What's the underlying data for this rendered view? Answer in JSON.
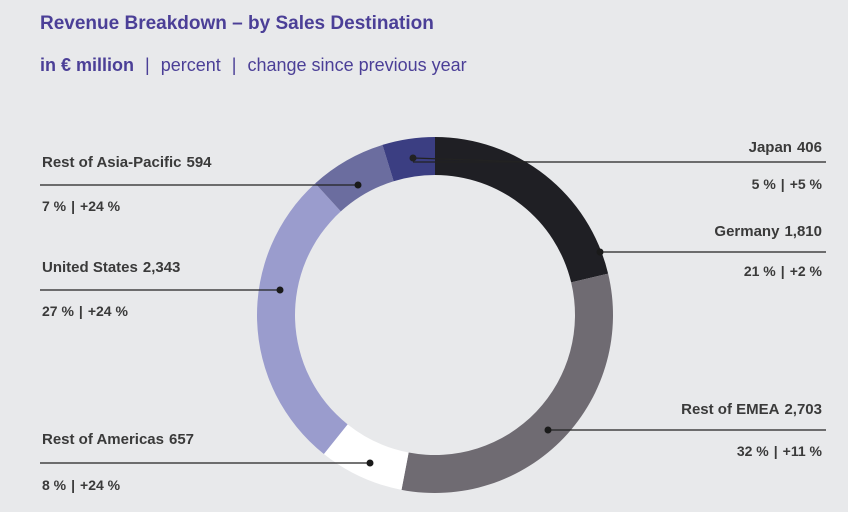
{
  "chart_data": {
    "type": "donut",
    "title": "Revenue Breakdown – by Sales Destination",
    "subtitle": [
      "in € million",
      "percent",
      "change since previous year"
    ],
    "separator": "|",
    "categories": [
      "Germany",
      "Rest of EMEA",
      "Rest of Americas",
      "United States",
      "Rest of Asia-Pacific",
      "Japan"
    ],
    "values": [
      1810,
      2703,
      657,
      2343,
      594,
      406
    ],
    "value_labels": [
      "1,810",
      "2,703",
      "657",
      "2,343",
      "594",
      "406"
    ],
    "percent": [
      21,
      32,
      8,
      27,
      7,
      5
    ],
    "percent_labels": [
      "21 %",
      "32 %",
      "8 %",
      "27 %",
      "7 %",
      "5 %"
    ],
    "changes": [
      2,
      11,
      24,
      24,
      24,
      5
    ],
    "change_labels": [
      "+2 %",
      "+11 %",
      "+24 %",
      "+24 %",
      "+24 %",
      "+5 %"
    ],
    "colors": [
      "#1f1f24",
      "#6f6b72",
      "#ffffff",
      "#9a9ccd",
      "#6b6d9f",
      "#3b3e82"
    ]
  }
}
